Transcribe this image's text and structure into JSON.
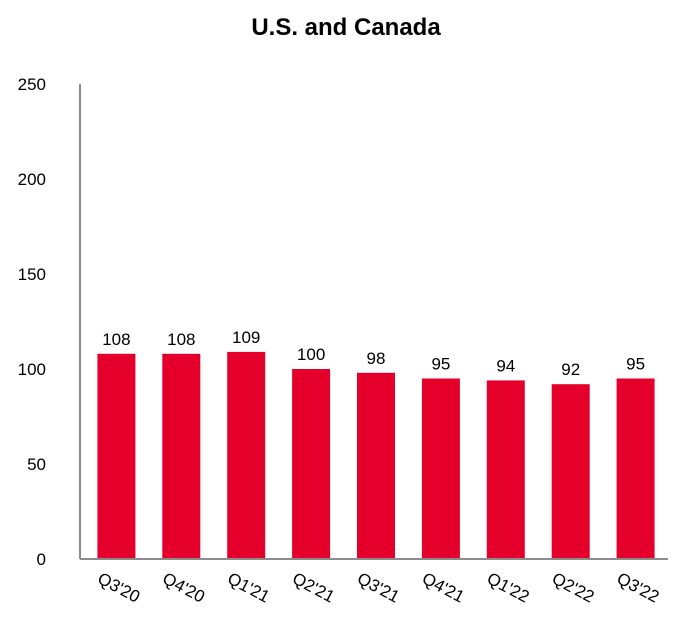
{
  "chart_data": {
    "type": "bar",
    "title": "U.S. and Canada",
    "xlabel": "",
    "ylabel": "",
    "categories": [
      "Q3'20",
      "Q4'20",
      "Q1'21",
      "Q2'21",
      "Q3'21",
      "Q4'21",
      "Q1'22",
      "Q2'22",
      "Q3'22"
    ],
    "values": [
      108,
      108,
      109,
      100,
      98,
      95,
      94,
      92,
      95
    ],
    "ylim": [
      0,
      250
    ],
    "yticks": [
      0,
      50,
      100,
      150,
      200,
      250
    ],
    "grid": false,
    "bar_color": "#e4002b",
    "axis_color": "#8c8c8c"
  }
}
